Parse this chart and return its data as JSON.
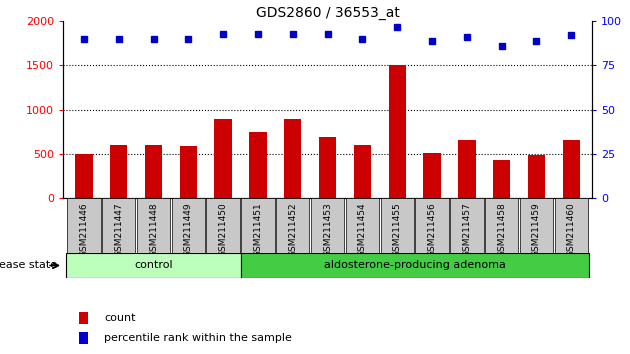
{
  "title": "GDS2860 / 36553_at",
  "categories": [
    "GSM211446",
    "GSM211447",
    "GSM211448",
    "GSM211449",
    "GSM211450",
    "GSM211451",
    "GSM211452",
    "GSM211453",
    "GSM211454",
    "GSM211455",
    "GSM211456",
    "GSM211457",
    "GSM211458",
    "GSM211459",
    "GSM211460"
  ],
  "counts": [
    500,
    600,
    600,
    590,
    890,
    750,
    890,
    690,
    600,
    1500,
    510,
    660,
    430,
    490,
    660
  ],
  "percentiles": [
    90,
    90,
    90,
    90,
    93,
    93,
    93,
    93,
    90,
    97,
    89,
    91,
    86,
    89,
    92
  ],
  "bar_color": "#cc0000",
  "dot_color": "#0000cc",
  "ylim_left": [
    0,
    2000
  ],
  "ylim_right": [
    0,
    100
  ],
  "yticks_left": [
    0,
    500,
    1000,
    1500,
    2000
  ],
  "yticks_right": [
    0,
    25,
    50,
    75,
    100
  ],
  "grid_lines": [
    500,
    1000,
    1500
  ],
  "control_count": 5,
  "group_labels": [
    "control",
    "aldosterone-producing adenoma"
  ],
  "control_color": "#bbffbb",
  "adenoma_color": "#44cc44",
  "disease_state_label": "disease state",
  "legend_items": [
    "count",
    "percentile rank within the sample"
  ],
  "legend_colors": [
    "#cc0000",
    "#0000cc"
  ],
  "tick_area_color": "#c8c8c8",
  "title_fontsize": 10,
  "tick_fontsize": 6.5,
  "label_fontsize": 8
}
